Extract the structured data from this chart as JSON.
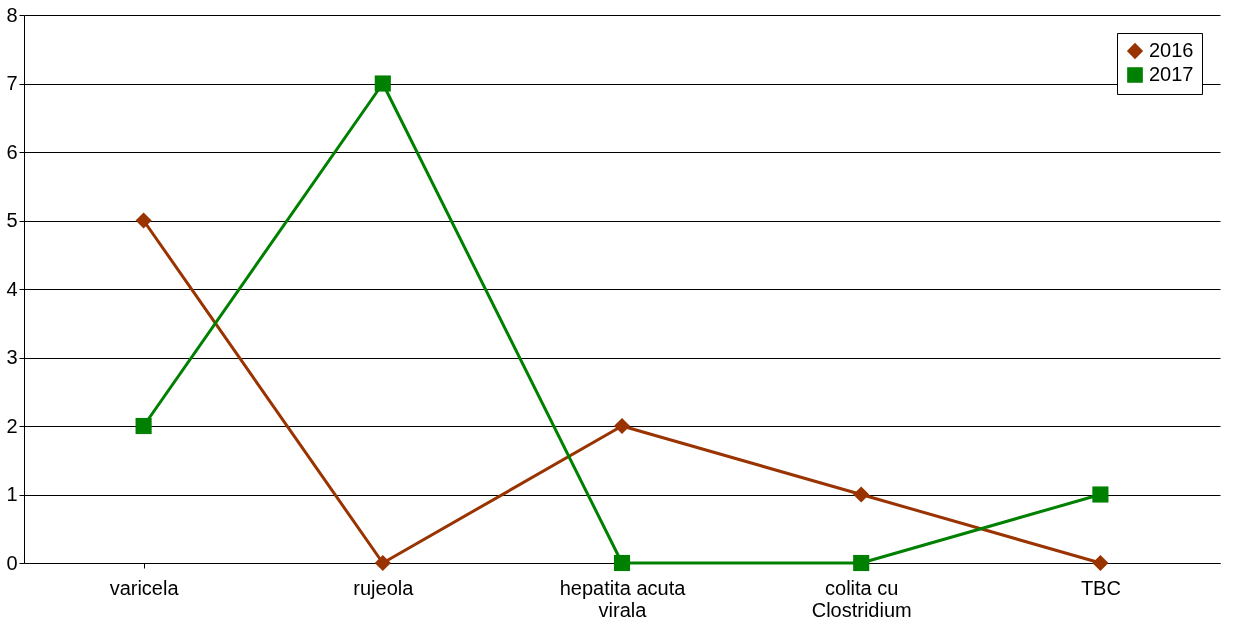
{
  "chart_data": {
    "type": "line",
    "categories": [
      "varicela",
      "rujeola",
      "hepatita acuta virala",
      "colita cu Clostridium",
      "TBC"
    ],
    "series": [
      {
        "name": "2016",
        "color": "#993300",
        "marker": "diamond",
        "values": [
          5,
          0,
          2,
          1,
          0
        ]
      },
      {
        "name": "2017",
        "color": "#008000",
        "marker": "square",
        "values": [
          2,
          7,
          0,
          0,
          1
        ]
      }
    ],
    "ylim": [
      0,
      8
    ],
    "yticks": [
      0,
      1,
      2,
      3,
      4,
      5,
      6,
      7,
      8
    ],
    "grid": "y",
    "legend": "top right",
    "line_style": "solid"
  }
}
